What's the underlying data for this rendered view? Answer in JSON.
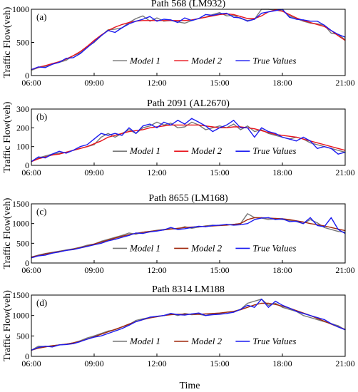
{
  "figure": {
    "xlabel": "Time",
    "ylabel": "Traffic Flow(veh)"
  },
  "chart_data": [
    {
      "type": "line",
      "panel": "(a)",
      "title": "Path 568 (LM932)",
      "xlabel": "",
      "ylabel": "Traffic Flow(veh)",
      "x_ticks": [
        "06:00",
        "09:00",
        "12:00",
        "15:00",
        "18:00",
        "21:00"
      ],
      "x_range": [
        "06:00",
        "21:00"
      ],
      "y_ticks": [
        0,
        500,
        1000
      ],
      "ylim": [
        0,
        1000
      ],
      "legend_position": "bottom-left",
      "legend": [
        "Model 1",
        "Model 2",
        "True Values"
      ],
      "x": [
        "06:00",
        "06:20",
        "06:40",
        "07:00",
        "07:20",
        "07:40",
        "08:00",
        "08:20",
        "08:40",
        "09:00",
        "09:20",
        "09:40",
        "10:00",
        "10:20",
        "10:40",
        "11:00",
        "11:20",
        "11:40",
        "12:00",
        "12:20",
        "12:40",
        "13:00",
        "13:20",
        "13:40",
        "14:00",
        "14:20",
        "14:40",
        "15:00",
        "15:20",
        "15:40",
        "16:00",
        "16:20",
        "16:40",
        "17:00",
        "17:20",
        "17:40",
        "18:00",
        "18:20",
        "18:40",
        "19:00",
        "19:20",
        "19:40",
        "20:00",
        "20:20",
        "20:40",
        "21:00"
      ],
      "series": [
        {
          "name": "Model 1",
          "color": "#777777",
          "values": [
            80,
            120,
            140,
            180,
            200,
            230,
            300,
            340,
            430,
            500,
            600,
            690,
            700,
            720,
            800,
            860,
            900,
            820,
            870,
            820,
            830,
            810,
            790,
            830,
            860,
            880,
            920,
            950,
            900,
            910,
            860,
            830,
            850,
            1000,
            1000,
            990,
            980,
            900,
            860,
            820,
            790,
            780,
            760,
            640,
            620,
            540
          ]
        },
        {
          "name": "Model 2",
          "color": "#e8141c",
          "values": [
            90,
            125,
            150,
            180,
            210,
            250,
            300,
            360,
            440,
            530,
            610,
            680,
            730,
            770,
            800,
            820,
            830,
            830,
            830,
            830,
            830,
            830,
            830,
            840,
            860,
            880,
            900,
            920,
            930,
            920,
            890,
            860,
            860,
            900,
            960,
            990,
            970,
            920,
            870,
            830,
            800,
            770,
            740,
            680,
            600,
            530
          ]
        },
        {
          "name": "True Values",
          "color": "#1c1cf0",
          "values": [
            90,
            130,
            120,
            170,
            200,
            260,
            270,
            330,
            420,
            510,
            600,
            680,
            650,
            720,
            780,
            820,
            850,
            890,
            820,
            850,
            840,
            800,
            870,
            830,
            860,
            920,
            910,
            930,
            940,
            880,
            870,
            820,
            850,
            940,
            960,
            980,
            1000,
            880,
            850,
            840,
            820,
            820,
            760,
            680,
            620,
            580
          ]
        }
      ]
    },
    {
      "type": "line",
      "panel": "(b)",
      "title": "Path 2091 (AL2670)",
      "xlabel": "",
      "ylabel": "Traffic Flow(veh)",
      "x_ticks": [
        "06:00",
        "09:00",
        "12:00",
        "15:00",
        "18:00",
        "21:00"
      ],
      "x_range": [
        "06:00",
        "21:00"
      ],
      "y_ticks": [
        0,
        100,
        200,
        300
      ],
      "ylim": [
        0,
        300
      ],
      "legend_position": "bottom-center",
      "legend": [
        "Model 1",
        "Model 2",
        "True Values"
      ],
      "x": [
        "06:00",
        "06:20",
        "06:40",
        "07:00",
        "07:20",
        "07:40",
        "08:00",
        "08:20",
        "08:40",
        "09:00",
        "09:20",
        "09:40",
        "10:00",
        "10:20",
        "10:40",
        "11:00",
        "11:20",
        "11:40",
        "12:00",
        "12:20",
        "12:40",
        "13:00",
        "13:20",
        "13:40",
        "14:00",
        "14:20",
        "14:40",
        "15:00",
        "15:20",
        "15:40",
        "16:00",
        "16:20",
        "16:40",
        "17:00",
        "17:20",
        "17:40",
        "18:00",
        "18:20",
        "18:40",
        "19:00",
        "19:20",
        "19:40",
        "20:00",
        "20:20",
        "20:40",
        "21:00"
      ],
      "series": [
        {
          "name": "Model 1",
          "color": "#777777",
          "values": [
            20,
            40,
            50,
            60,
            65,
            70,
            80,
            90,
            100,
            110,
            150,
            170,
            150,
            170,
            190,
            170,
            200,
            210,
            230,
            215,
            225,
            200,
            205,
            230,
            215,
            190,
            200,
            210,
            200,
            220,
            190,
            210,
            180,
            190,
            170,
            160,
            150,
            140,
            150,
            140,
            120,
            110,
            100,
            90,
            80,
            70
          ]
        },
        {
          "name": "Model 2",
          "color": "#e8141c",
          "values": [
            20,
            35,
            45,
            55,
            60,
            70,
            80,
            90,
            100,
            115,
            130,
            150,
            160,
            170,
            180,
            185,
            190,
            200,
            205,
            210,
            215,
            215,
            215,
            215,
            215,
            210,
            205,
            200,
            200,
            205,
            205,
            200,
            195,
            185,
            175,
            165,
            160,
            155,
            150,
            140,
            130,
            120,
            110,
            100,
            90,
            80
          ]
        },
        {
          "name": "True Values",
          "color": "#1c1cf0",
          "values": [
            20,
            45,
            40,
            60,
            75,
            65,
            80,
            100,
            110,
            140,
            170,
            160,
            170,
            160,
            200,
            170,
            210,
            220,
            200,
            230,
            215,
            240,
            220,
            250,
            230,
            210,
            180,
            200,
            215,
            240,
            200,
            200,
            150,
            200,
            180,
            170,
            150,
            140,
            130,
            150,
            130,
            90,
            100,
            90,
            60,
            70
          ]
        }
      ]
    },
    {
      "type": "line",
      "panel": "(c)",
      "title": "Path 8655 (LM168)",
      "xlabel": "",
      "ylabel": "Traffic Flow(veh)",
      "x_ticks": [
        "06:00",
        "09:00",
        "12:00",
        "15:00",
        "18:00",
        "21:00"
      ],
      "x_range": [
        "06:00",
        "21:00"
      ],
      "y_ticks": [
        0,
        500,
        1000,
        1500
      ],
      "ylim": [
        0,
        1500
      ],
      "legend_position": "bottom-center",
      "legend": [
        "Model 1",
        "Model 2",
        "True Values"
      ],
      "x": [
        "06:00",
        "06:20",
        "06:40",
        "07:00",
        "07:20",
        "07:40",
        "08:00",
        "08:20",
        "08:40",
        "09:00",
        "09:20",
        "09:40",
        "10:00",
        "10:20",
        "10:40",
        "11:00",
        "11:20",
        "11:40",
        "12:00",
        "12:20",
        "12:40",
        "13:00",
        "13:20",
        "13:40",
        "14:00",
        "14:20",
        "14:40",
        "15:00",
        "15:20",
        "15:40",
        "16:00",
        "16:20",
        "16:40",
        "17:00",
        "17:20",
        "17:40",
        "18:00",
        "18:20",
        "18:40",
        "19:00",
        "19:20",
        "19:40",
        "20:00",
        "20:20",
        "20:40",
        "21:00"
      ],
      "series": [
        {
          "name": "Model 1",
          "color": "#777777",
          "values": [
            150,
            200,
            240,
            270,
            300,
            330,
            360,
            400,
            450,
            480,
            550,
            600,
            650,
            700,
            760,
            730,
            780,
            800,
            830,
            850,
            870,
            860,
            920,
            880,
            910,
            940,
            960,
            950,
            970,
            980,
            1000,
            1250,
            1150,
            1140,
            1100,
            1120,
            1100,
            1080,
            1050,
            1000,
            1100,
            1020,
            900,
            850,
            800,
            780
          ]
        },
        {
          "name": "Model 2",
          "color": "#a0290e",
          "values": [
            150,
            190,
            230,
            260,
            290,
            320,
            350,
            390,
            430,
            480,
            530,
            580,
            630,
            680,
            720,
            750,
            780,
            800,
            820,
            840,
            860,
            880,
            900,
            910,
            920,
            930,
            940,
            950,
            960,
            980,
            1000,
            1100,
            1150,
            1150,
            1140,
            1130,
            1120,
            1100,
            1070,
            1040,
            1000,
            970,
            940,
            900,
            860,
            820
          ]
        },
        {
          "name": "True Values",
          "color": "#1c1cf0",
          "values": [
            130,
            180,
            200,
            250,
            280,
            320,
            340,
            380,
            420,
            460,
            500,
            560,
            600,
            650,
            700,
            760,
            750,
            790,
            810,
            840,
            900,
            850,
            870,
            900,
            930,
            920,
            950,
            960,
            980,
            960,
            970,
            1000,
            1100,
            1140,
            1150,
            1100,
            1120,
            1050,
            1060,
            1000,
            1150,
            950,
            920,
            1150,
            850,
            750
          ]
        }
      ]
    },
    {
      "type": "line",
      "panel": "(d)",
      "title": "Path 8314  LM188",
      "xlabel": "Time",
      "ylabel": "Traffic Flow(veh)",
      "x_ticks": [
        "06:00",
        "09:00",
        "12:00",
        "15:00",
        "18:00",
        "21:00"
      ],
      "x_range": [
        "06:00",
        "21:00"
      ],
      "y_ticks": [
        0,
        500,
        1000,
        1500
      ],
      "ylim": [
        0,
        1500
      ],
      "legend_position": "bottom-center",
      "legend": [
        "Model 1",
        "Model 2",
        "True Values"
      ],
      "x": [
        "06:00",
        "06:20",
        "06:40",
        "07:00",
        "07:20",
        "07:40",
        "08:00",
        "08:20",
        "08:40",
        "09:00",
        "09:20",
        "09:40",
        "10:00",
        "10:20",
        "10:40",
        "11:00",
        "11:20",
        "11:40",
        "12:00",
        "12:20",
        "12:40",
        "13:00",
        "13:20",
        "13:40",
        "14:00",
        "14:20",
        "14:40",
        "15:00",
        "15:20",
        "15:40",
        "16:00",
        "16:20",
        "16:40",
        "17:00",
        "17:20",
        "17:40",
        "18:00",
        "18:20",
        "18:40",
        "19:00",
        "19:20",
        "19:40",
        "20:00",
        "20:20",
        "20:40",
        "21:00"
      ],
      "series": [
        {
          "name": "Model 1",
          "color": "#777777",
          "values": [
            150,
            250,
            240,
            260,
            280,
            300,
            330,
            380,
            450,
            500,
            560,
            620,
            650,
            720,
            780,
            880,
            920,
            950,
            980,
            1000,
            1050,
            1000,
            1050,
            1020,
            1030,
            1000,
            1050,
            1050,
            1080,
            1100,
            1150,
            1300,
            1350,
            1400,
            1250,
            1300,
            1200,
            1150,
            1100,
            1000,
            950,
            900,
            850,
            800,
            750,
            650
          ]
        },
        {
          "name": "Model 2",
          "color": "#a0290e",
          "values": [
            150,
            200,
            230,
            260,
            280,
            300,
            330,
            370,
            420,
            480,
            540,
            600,
            660,
            720,
            790,
            850,
            900,
            940,
            970,
            1000,
            1020,
            1030,
            1030,
            1030,
            1030,
            1040,
            1050,
            1060,
            1080,
            1100,
            1140,
            1200,
            1260,
            1300,
            1300,
            1270,
            1230,
            1180,
            1120,
            1060,
            1000,
            930,
            860,
            790,
            720,
            660
          ]
        },
        {
          "name": "True Values",
          "color": "#1c1cf0",
          "values": [
            150,
            220,
            250,
            230,
            280,
            290,
            310,
            360,
            420,
            470,
            500,
            560,
            620,
            680,
            760,
            850,
            900,
            960,
            980,
            1000,
            1050,
            1020,
            1010,
            1040,
            1060,
            1000,
            1020,
            1030,
            1050,
            1080,
            1150,
            1250,
            1200,
            1400,
            1200,
            1350,
            1250,
            1180,
            1100,
            1050,
            1000,
            950,
            900,
            800,
            720,
            650
          ]
        }
      ]
    }
  ]
}
